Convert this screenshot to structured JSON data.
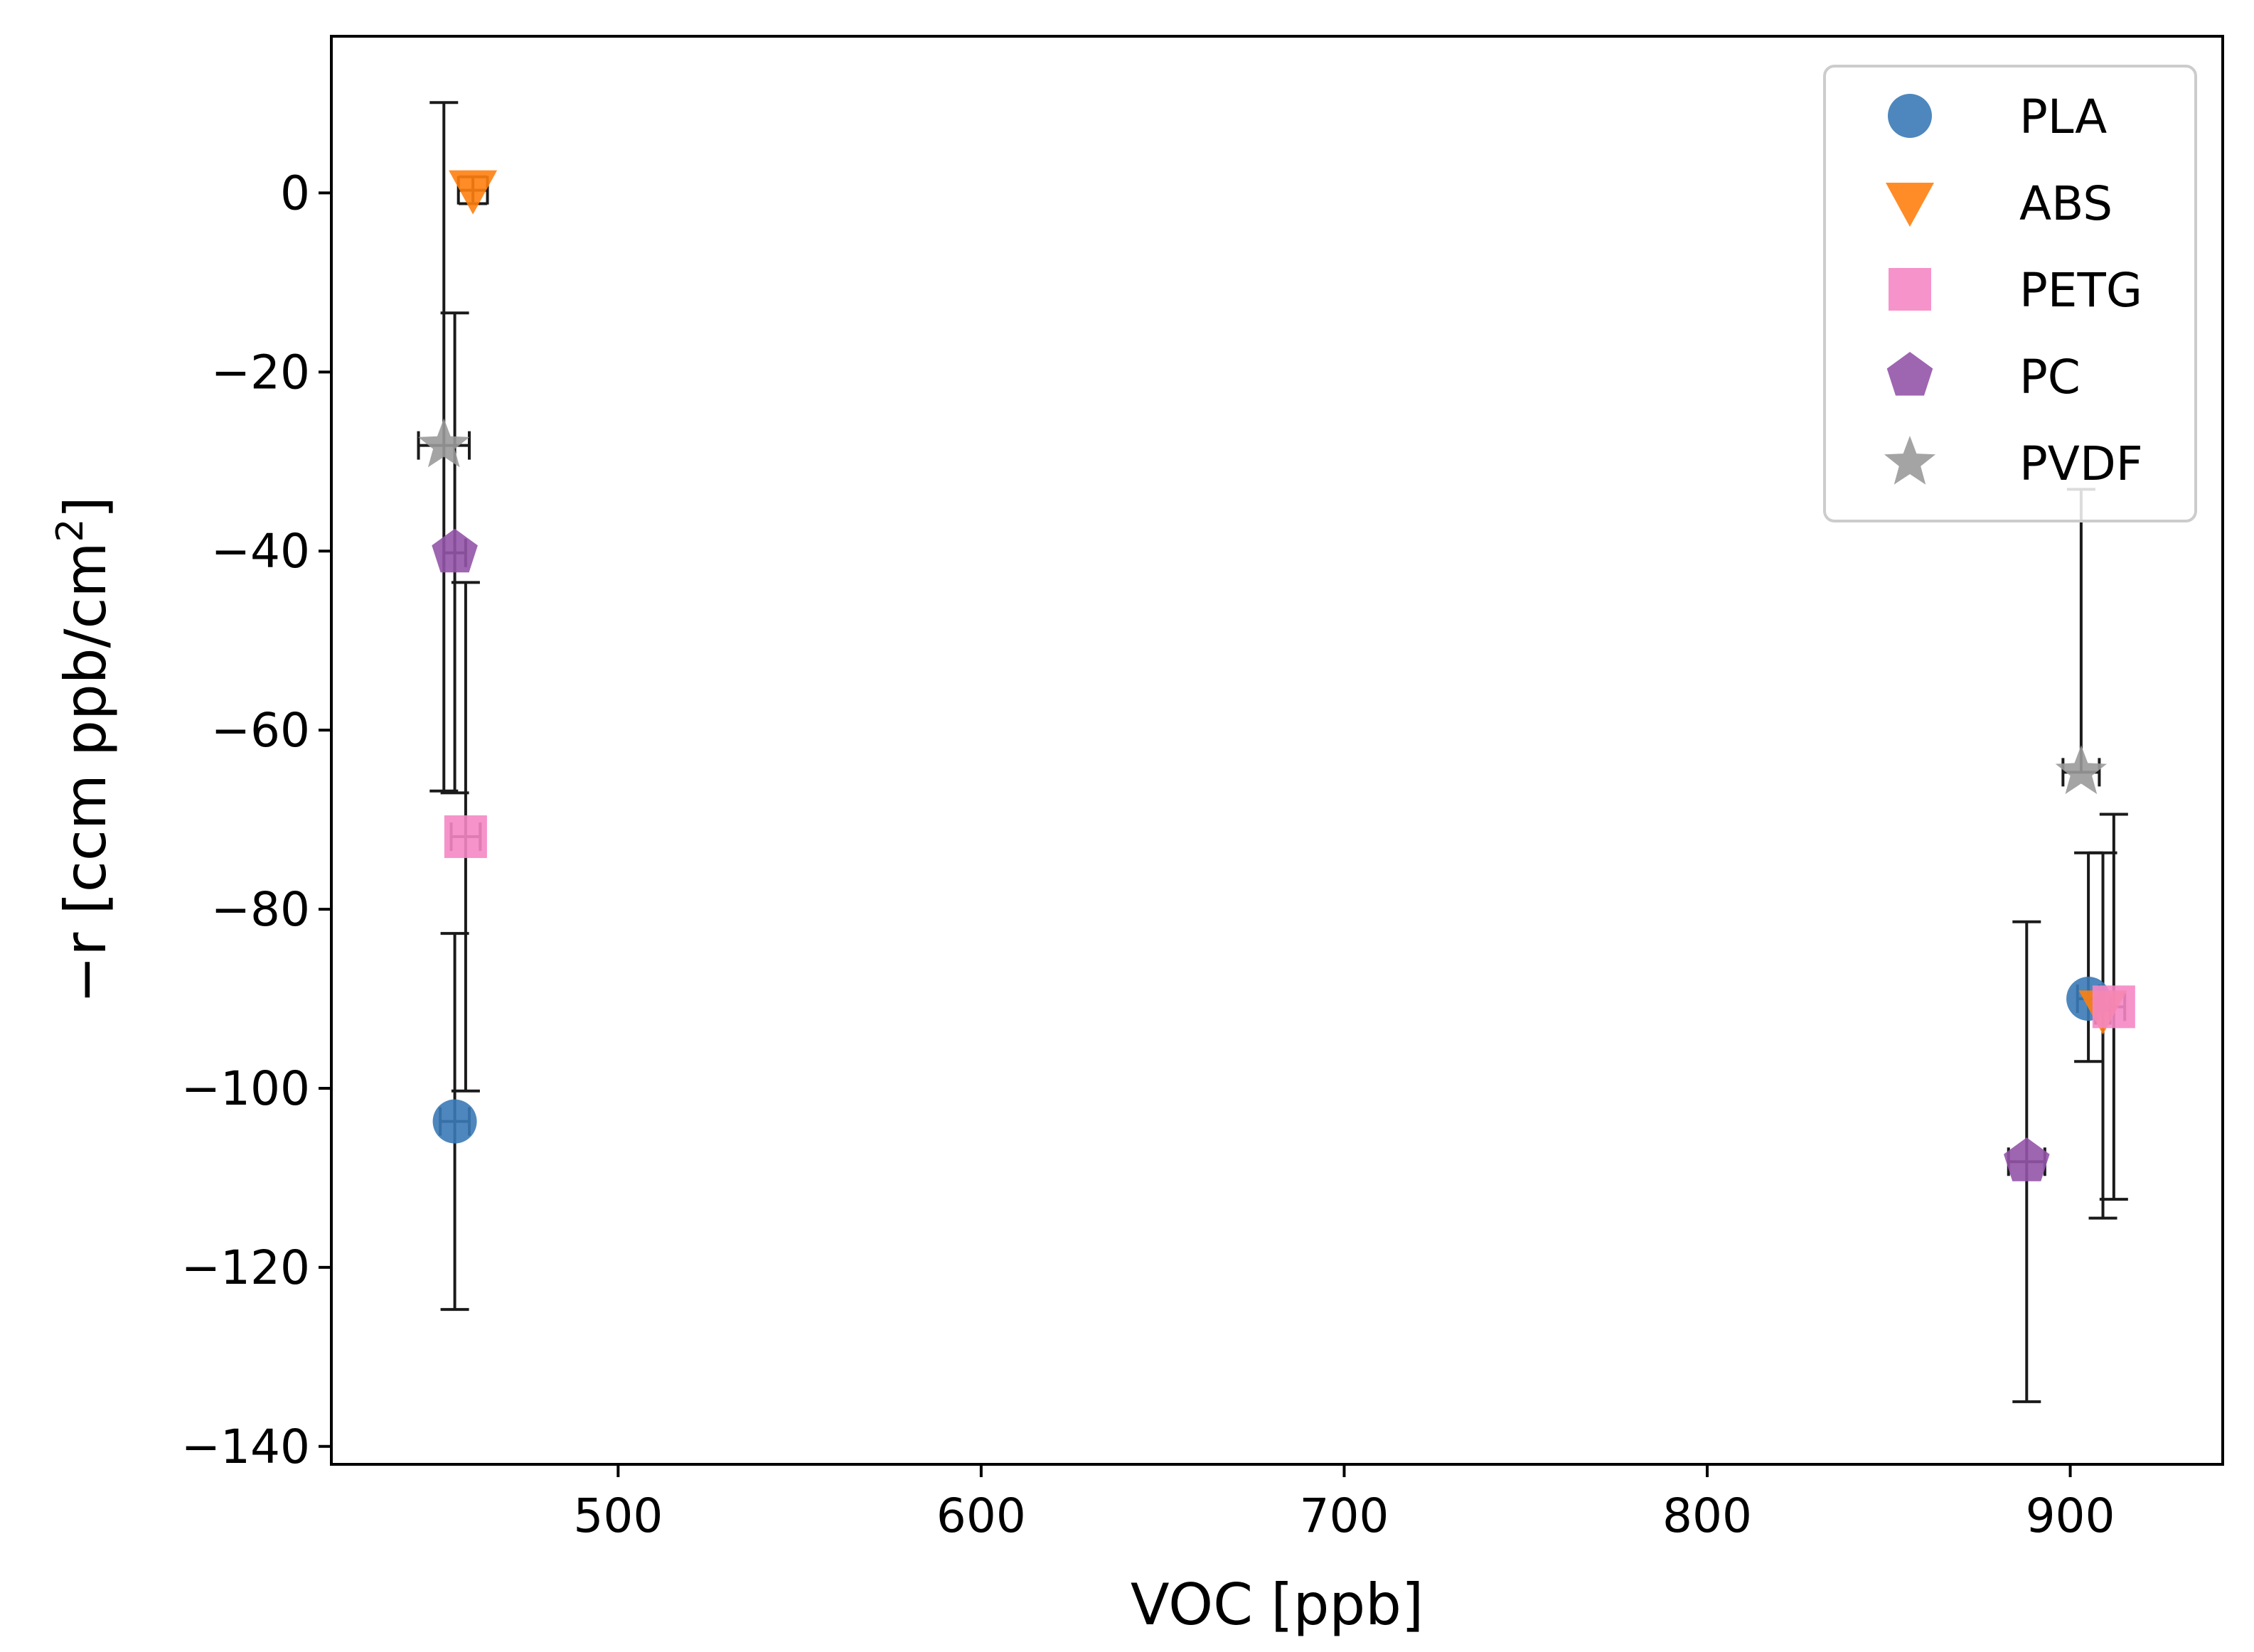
{
  "colors": {
    "PLA": "#3a7ab6",
    "ABS": "#ff7f0e",
    "PETG": "#f587c4",
    "PC": "#9354a8",
    "PVDF": "#9a9a9a",
    "errorbar": "#1a1a1a"
  },
  "chart_data": {
    "type": "scatter",
    "title": "",
    "xlabel": "VOC [ppb]",
    "ylabel_main": "−r [ccm ppb/cm",
    "ylabel_sup": "2",
    "ylabel_end": "]",
    "xlim": [
      421,
      942
    ],
    "ylim": [
      -142,
      17.5
    ],
    "xticks": [
      500,
      600,
      700,
      800,
      900
    ],
    "yticks": [
      0,
      -20,
      -40,
      -60,
      -80,
      -100,
      -120,
      -140
    ],
    "legend_position": "top-right",
    "series": [
      {
        "name": "PLA",
        "marker": "circle",
        "points": [
          {
            "x": 455,
            "y": -103.7,
            "xerr": 4,
            "yerr_low": 21,
            "yerr_high": 21
          },
          {
            "x": 905,
            "y": -90.0,
            "xerr": 3,
            "yerr_low": 7,
            "yerr_high": 16.3
          }
        ]
      },
      {
        "name": "ABS",
        "marker": "triangle-down",
        "points": [
          {
            "x": 460,
            "y": 0.3,
            "xerr": 4,
            "yerr_low": 1.5,
            "yerr_high": 1.5
          },
          {
            "x": 909,
            "y": -91.3,
            "xerr": 2,
            "yerr_low": 23.2,
            "yerr_high": 17.6
          }
        ]
      },
      {
        "name": "PETG",
        "marker": "square",
        "points": [
          {
            "x": 458,
            "y": -71.9,
            "xerr": 4,
            "yerr_low": 28.4,
            "yerr_high": 28.4
          },
          {
            "x": 912,
            "y": -90.9,
            "xerr": 3,
            "yerr_low": 21.5,
            "yerr_high": 21.5
          }
        ]
      },
      {
        "name": "PC",
        "marker": "pentagon",
        "points": [
          {
            "x": 455,
            "y": -40.2,
            "xerr": 3,
            "yerr_low": 26.8,
            "yerr_high": 26.8
          },
          {
            "x": 888,
            "y": -108.2,
            "xerr": 5,
            "yerr_low": 26.8,
            "yerr_high": 26.8
          }
        ]
      },
      {
        "name": "PVDF",
        "marker": "star",
        "points": [
          {
            "x": 452,
            "y": -28.2,
            "xerr": 7,
            "yerr_low": 38.6,
            "yerr_high": 38.3
          },
          {
            "x": 903,
            "y": -64.7,
            "xerr": 5,
            "yerr_low": 0,
            "yerr_high": 31.6
          }
        ]
      }
    ]
  }
}
